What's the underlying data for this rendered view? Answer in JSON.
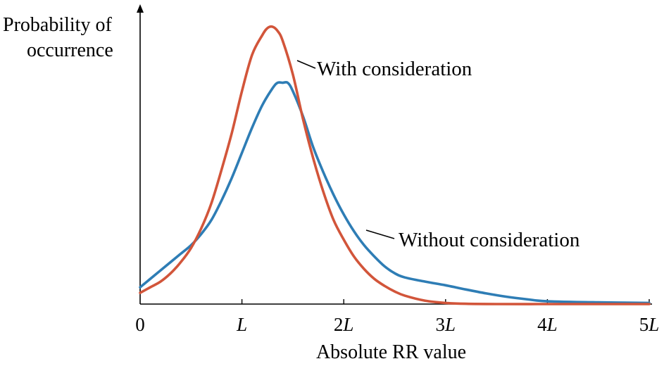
{
  "chart_data": {
    "type": "line",
    "ylabel_lines": [
      "Probability of",
      "occurrence"
    ],
    "xlabel": "Absolute RR value",
    "xlim": [
      0,
      5
    ],
    "ylim": [
      0,
      1
    ],
    "grid": false,
    "x_ticks": [
      {
        "value": 0,
        "label": "0",
        "italic": false
      },
      {
        "value": 1,
        "label": "L",
        "italic": true
      },
      {
        "value": 2,
        "label": "2",
        "suffix": "L",
        "italic": false
      },
      {
        "value": 3,
        "label": "3",
        "suffix": "L",
        "italic": false
      },
      {
        "value": 4,
        "label": "4",
        "suffix": "L",
        "italic": false
      },
      {
        "value": 5,
        "label": "5",
        "suffix": "L",
        "italic": false
      }
    ],
    "series": [
      {
        "name": "With consideration",
        "color": "#D2553A",
        "x": [
          0,
          0.1,
          0.2,
          0.3,
          0.4,
          0.5,
          0.6,
          0.7,
          0.8,
          0.9,
          1.0,
          1.1,
          1.2,
          1.25,
          1.3,
          1.35,
          1.4,
          1.5,
          1.6,
          1.7,
          1.8,
          1.9,
          2.0,
          2.1,
          2.2,
          2.3,
          2.4,
          2.5,
          2.6,
          2.8,
          3.0,
          3.2,
          3.5,
          4.0,
          4.5,
          5.0
        ],
        "y": [
          0.04,
          0.06,
          0.08,
          0.11,
          0.15,
          0.2,
          0.27,
          0.36,
          0.48,
          0.61,
          0.76,
          0.89,
          0.96,
          0.985,
          0.99,
          0.975,
          0.94,
          0.82,
          0.66,
          0.52,
          0.4,
          0.3,
          0.23,
          0.17,
          0.125,
          0.09,
          0.065,
          0.045,
          0.03,
          0.012,
          0.004,
          0.001,
          0.0,
          0.0,
          0.0,
          0.0
        ]
      },
      {
        "name": "Without consideration",
        "color": "#2E7DB5",
        "x": [
          0,
          0.1,
          0.2,
          0.3,
          0.4,
          0.5,
          0.6,
          0.7,
          0.8,
          0.9,
          1.0,
          1.1,
          1.2,
          1.3,
          1.35,
          1.4,
          1.45,
          1.5,
          1.6,
          1.7,
          1.8,
          1.9,
          2.0,
          2.1,
          2.2,
          2.3,
          2.4,
          2.5,
          2.6,
          2.8,
          3.0,
          3.2,
          3.4,
          3.6,
          3.8,
          4.0,
          4.5,
          5.0
        ],
        "y": [
          0.06,
          0.09,
          0.12,
          0.15,
          0.18,
          0.21,
          0.25,
          0.3,
          0.37,
          0.45,
          0.54,
          0.63,
          0.71,
          0.77,
          0.79,
          0.79,
          0.79,
          0.76,
          0.67,
          0.56,
          0.47,
          0.39,
          0.32,
          0.26,
          0.21,
          0.17,
          0.135,
          0.11,
          0.095,
          0.08,
          0.067,
          0.052,
          0.038,
          0.026,
          0.017,
          0.01,
          0.006,
          0.004
        ]
      }
    ],
    "annotations": [
      {
        "text": "With consideration",
        "series": "With consideration"
      },
      {
        "text": "Without consideration",
        "series": "Without consideration"
      }
    ]
  }
}
